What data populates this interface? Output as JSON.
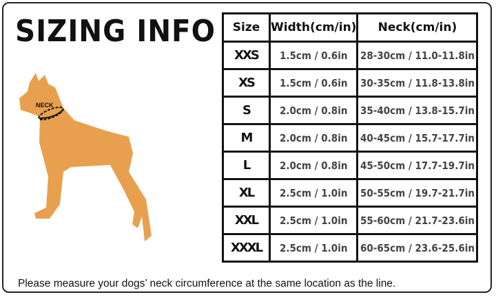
{
  "title": "SIZING INFO",
  "dog_label": "NECK",
  "colors": {
    "dog": "#e8a04f",
    "border": "#111111"
  },
  "table": {
    "headers": [
      "Size",
      "Width(cm/in)",
      "Neck(cm/in)"
    ],
    "rows": [
      {
        "size": "XXS",
        "width": "1.5cm / 0.6in",
        "neck": "28-30cm / 11.0-11.8in"
      },
      {
        "size": "XS",
        "width": "1.5cm / 0.6in",
        "neck": "30-35cm / 11.8-13.8in"
      },
      {
        "size": "S",
        "width": "2.0cm / 0.8in",
        "neck": "35-40cm / 13.8-15.7in"
      },
      {
        "size": "M",
        "width": "2.0cm / 0.8in",
        "neck": "40-45cm / 15.7-17.7in"
      },
      {
        "size": "L",
        "width": "2.0cm / 0.8in",
        "neck": "45-50cm / 17.7-19.7in"
      },
      {
        "size": "XL",
        "width": "2.5cm / 1.0in",
        "neck": "50-55cm / 19.7-21.7in"
      },
      {
        "size": "XXL",
        "width": "2.5cm / 1.0in",
        "neck": "55-60cm / 21.7-23.6in"
      },
      {
        "size": "XXXL",
        "width": "2.5cm / 1.0in",
        "neck": "60-65cm / 23.6-25.6in"
      }
    ]
  },
  "note": "Please measure your dogs’  neck circumference at the same location as the line."
}
